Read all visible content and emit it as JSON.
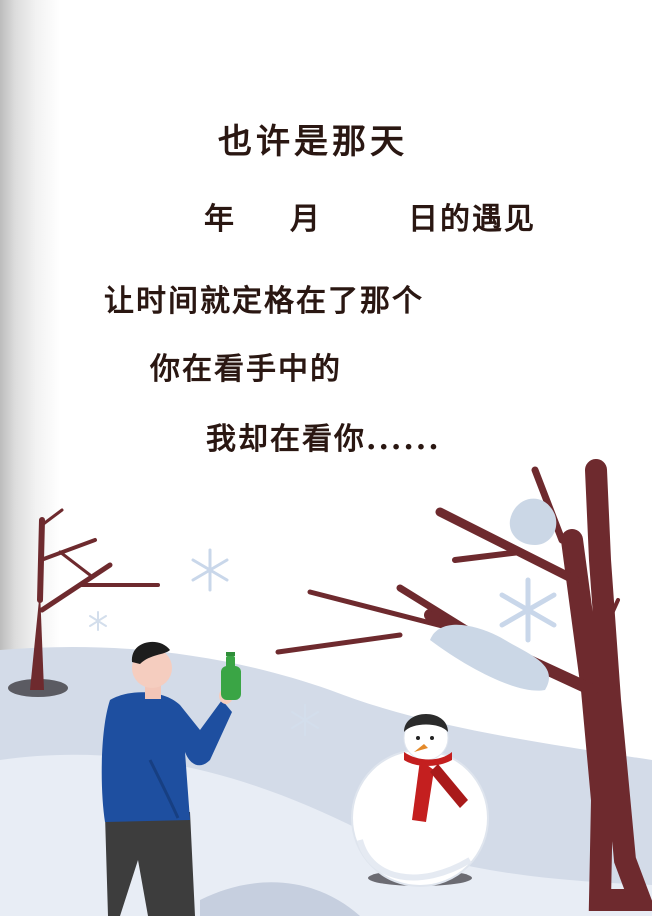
{
  "poem": {
    "line1": "也许是那天",
    "line2": {
      "year": "年",
      "month": "月",
      "day_suffix": "日的遇见"
    },
    "line3": "让时间就定格在了那个",
    "line4": "你在看手中的",
    "line5": "我却在看你......"
  },
  "colors": {
    "text": "#2a1712",
    "tree": "#6e2a2e",
    "snow_ground": "#d3dbe8",
    "jacket": "#1e4fa0",
    "scarf": "#c41f1f",
    "bottle": "#3aa545"
  },
  "icons": [
    "snowflake-icon",
    "tree-icon",
    "snowman-icon",
    "person-icon",
    "bottle-icon"
  ]
}
